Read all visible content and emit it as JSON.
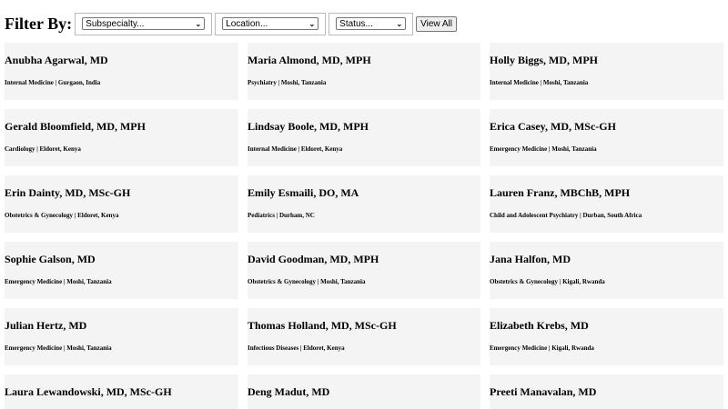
{
  "filter": {
    "title": "Filter By:",
    "subspecialty": "Subspecialty...",
    "location": "Location...",
    "status": "Status...",
    "view_all": "View All"
  },
  "people": [
    {
      "name": "Anubha Agarwal, MD",
      "meta": "Internal Medicine | Gurgaon, India"
    },
    {
      "name": "Maria Almond, MD, MPH",
      "meta": "Psychiatry | Moshi, Tanzania"
    },
    {
      "name": "Holly Biggs, MD, MPH",
      "meta": "Internal Medicine | Moshi, Tanzania"
    },
    {
      "name": "Gerald Bloomfield, MD, MPH",
      "meta": "Cardiology | Eldoret, Kenya"
    },
    {
      "name": "Lindsay Boole, MD, MPH",
      "meta": "Internal Medicine | Eldoret, Kenya"
    },
    {
      "name": "Erica Casey, MD, MSc-GH",
      "meta": "Emergency Medicine | Moshi, Tanzania"
    },
    {
      "name": "Erin Dainty, MD, MSc-GH",
      "meta": "Obstetrics & Gynecology | Eldoret, Kenya"
    },
    {
      "name": "Emily Esmaili, DO, MA",
      "meta": "Pediatrics | Durham, NC"
    },
    {
      "name": "Lauren Franz, MBChB, MPH",
      "meta": "Child and Adolescent Psychiatry | Durban, South Africa"
    },
    {
      "name": "Sophie Galson, MD",
      "meta": "Emergency Medicine | Moshi, Tanzania"
    },
    {
      "name": "David Goodman, MD, MPH",
      "meta": "Obstetrics & Gynecology | Moshi, Tanzania"
    },
    {
      "name": "Jana Halfon, MD",
      "meta": "Obstetrics & Gynecology | Kigali, Rwanda"
    },
    {
      "name": "Julian Hertz, MD",
      "meta": "Emergency Medicine | Moshi, Tanzania"
    },
    {
      "name": "Thomas Holland, MD, MSc-GH",
      "meta": "Infectious Diseases | Eldoret, Kenya"
    },
    {
      "name": "Elizabeth Krebs, MD",
      "meta": "Emergency Medicine | Kigali, Rwanda"
    },
    {
      "name": "Laura Lewandowski, MD, MSc-GH",
      "meta": ""
    },
    {
      "name": "Deng Madut, MD",
      "meta": ""
    },
    {
      "name": "Preeti Manavalan, MD",
      "meta": ""
    }
  ]
}
